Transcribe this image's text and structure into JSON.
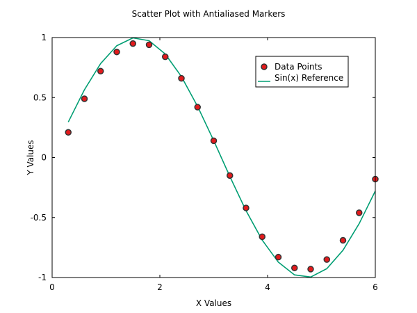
{
  "chart_data": {
    "type": "scatter",
    "title": "Scatter Plot with Antialiased Markers",
    "xlabel": "X Values",
    "ylabel": "Y Values",
    "xlim": [
      0,
      6
    ],
    "ylim": [
      -1,
      1
    ],
    "xticks": [
      0,
      2,
      4,
      6
    ],
    "xtick_labels": [
      "0",
      "2",
      "4",
      "6"
    ],
    "yticks": [
      -1,
      -0.5,
      0,
      0.5,
      1
    ],
    "ytick_labels": [
      "-1",
      "-0.5",
      "0",
      "0.5",
      "1"
    ],
    "grid": false,
    "legend_position": "top-right",
    "series": [
      {
        "name": "Data Points",
        "kind": "scatter",
        "marker_fill": "#e31a1c",
        "marker_edge": "#333333",
        "x": [
          0.3,
          0.6,
          0.9,
          1.2,
          1.5,
          1.8,
          2.1,
          2.4,
          2.7,
          3.0,
          3.3,
          3.6,
          3.9,
          4.2,
          4.5,
          4.8,
          5.1,
          5.4,
          5.7,
          6.0
        ],
        "y": [
          0.21,
          0.49,
          0.72,
          0.88,
          0.95,
          0.94,
          0.84,
          0.66,
          0.42,
          0.14,
          -0.15,
          -0.42,
          -0.66,
          -0.83,
          -0.92,
          -0.93,
          -0.85,
          -0.69,
          -0.46,
          -0.18
        ]
      },
      {
        "name": "Sin(x) Reference",
        "kind": "line",
        "color": "#009e73",
        "x": [
          0.3,
          0.6,
          0.9,
          1.2,
          1.5,
          1.8,
          2.1,
          2.4,
          2.7,
          3.0,
          3.3,
          3.6,
          3.9,
          4.2,
          4.5,
          4.8,
          5.1,
          5.4,
          5.7,
          6.0
        ],
        "y": [
          0.296,
          0.565,
          0.783,
          0.932,
          0.997,
          0.974,
          0.863,
          0.675,
          0.427,
          0.141,
          -0.158,
          -0.443,
          -0.688,
          -0.872,
          -0.978,
          -0.996,
          -0.926,
          -0.773,
          -0.551,
          -0.279
        ]
      }
    ]
  }
}
